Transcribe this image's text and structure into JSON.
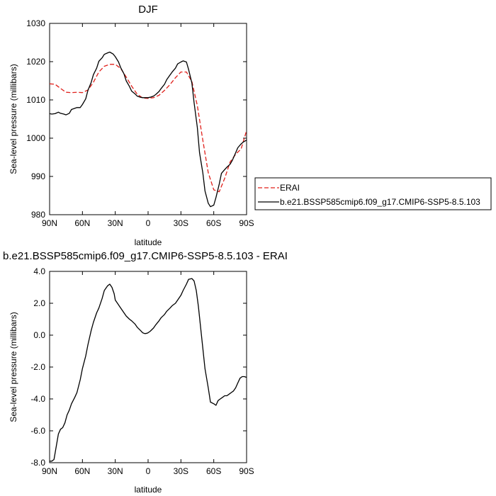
{
  "chart_data": [
    {
      "type": "line",
      "title": "DJF",
      "xlabel": "latitude",
      "ylabel": "Sea-level pressure (millibars)",
      "xlim": [
        90,
        -90
      ],
      "ylim": [
        980,
        1030
      ],
      "x_ticks": [
        90,
        60,
        30,
        0,
        -30,
        -60,
        -90
      ],
      "x_tick_labels": [
        "90N",
        "60N",
        "30N",
        "0",
        "30S",
        "60S",
        "90S"
      ],
      "y_ticks": [
        980,
        990,
        1000,
        1010,
        1020,
        1030
      ],
      "y_tick_labels": [
        "980",
        "990",
        "1000",
        "1010",
        "1020",
        "1030"
      ],
      "legend_position": "right",
      "series": [
        {
          "name": "ERAI",
          "color": "#e0201b",
          "dash": "dashed",
          "x": [
            90,
            85,
            80,
            75,
            70,
            65,
            60,
            55,
            50,
            45,
            40,
            35,
            30,
            25,
            20,
            15,
            10,
            5,
            0,
            -5,
            -10,
            -15,
            -20,
            -25,
            -30,
            -35,
            -40,
            -45,
            -50,
            -55,
            -60,
            -65,
            -70,
            -75,
            -80,
            -85,
            -90
          ],
          "values": [
            1014.2,
            1014.1,
            1013.0,
            1012.0,
            1011.9,
            1012.0,
            1011.9,
            1012.6,
            1014.6,
            1017.3,
            1018.8,
            1019.3,
            1019.3,
            1018.2,
            1016.0,
            1013.6,
            1011.5,
            1010.5,
            1010.4,
            1010.6,
            1011.2,
            1012.5,
            1014.0,
            1015.8,
            1017.3,
            1017.3,
            1014.8,
            1008.5,
            999.5,
            991.0,
            986.5,
            986.0,
            989.5,
            993.8,
            995.8,
            997.2,
            1002.0
          ]
        },
        {
          "name": "b.e21.BSSP585cmip6.f09_g17.CMIP6-SSP5-8.5.103",
          "color": "#000000",
          "dash": "solid",
          "x": [
            90,
            88,
            85,
            82,
            80,
            77,
            75,
            72,
            70,
            67,
            65,
            62,
            60,
            57,
            55,
            52,
            50,
            47,
            45,
            42,
            40,
            37,
            35,
            32,
            30,
            27,
            25,
            22,
            20,
            17,
            15,
            12,
            10,
            7,
            5,
            2,
            0,
            -2,
            -5,
            -7,
            -10,
            -12,
            -15,
            -17,
            -20,
            -22,
            -25,
            -27,
            -30,
            -32,
            -35,
            -37,
            -40,
            -42,
            -45,
            -47,
            -50,
            -52,
            -55,
            -57,
            -60,
            -62,
            -65,
            -67,
            -70,
            -72,
            -75,
            -77,
            -80,
            -82,
            -85,
            -87,
            -90
          ],
          "values": [
            1006.4,
            1006.3,
            1006.4,
            1006.8,
            1006.5,
            1006.3,
            1006.1,
            1006.5,
            1007.5,
            1007.8,
            1008.0,
            1008.0,
            1008.8,
            1010.3,
            1012.5,
            1014.6,
            1016.6,
            1018.3,
            1020.1,
            1021.0,
            1021.9,
            1022.3,
            1022.5,
            1022.0,
            1021.3,
            1019.9,
            1018.4,
            1016.8,
            1015.0,
            1013.5,
            1012.3,
            1011.6,
            1011.0,
            1010.7,
            1010.6,
            1010.6,
            1010.6,
            1010.7,
            1011.0,
            1011.4,
            1012.2,
            1013.0,
            1014.1,
            1015.3,
            1016.5,
            1017.3,
            1018.3,
            1019.4,
            1019.9,
            1020.2,
            1019.9,
            1018.0,
            1014.4,
            1009.3,
            1002.8,
            996.2,
            991.0,
            986.2,
            983.0,
            982.1,
            982.5,
            984.5,
            988.0,
            990.8,
            991.8,
            992.4,
            993.2,
            994.2,
            996.2,
            997.5,
            998.5,
            999.0,
            999.5
          ]
        }
      ]
    },
    {
      "type": "line",
      "title": "b.e21.BSSP585cmip6.f09_g17.CMIP6-SSP5-8.5.103 - ERAI",
      "xlabel": "latitude",
      "ylabel": "Sea-level pressure (millibars)",
      "xlim": [
        90,
        -90
      ],
      "ylim": [
        -8,
        4
      ],
      "x_ticks": [
        90,
        60,
        30,
        0,
        -30,
        -60,
        -90
      ],
      "x_tick_labels": [
        "90N",
        "60N",
        "30N",
        "0",
        "30S",
        "60S",
        "90S"
      ],
      "y_ticks": [
        -8,
        -6,
        -4,
        -2,
        0,
        2,
        4
      ],
      "y_tick_labels": [
        "-8.0",
        "-6.0",
        "-4.0",
        "-2.0",
        "0.0",
        "2.0",
        "4.0"
      ],
      "series": [
        {
          "color": "#000000",
          "dash": "solid",
          "x": [
            90,
            88,
            86,
            84,
            82,
            80,
            78,
            76,
            74,
            72,
            70,
            67,
            65,
            62,
            60,
            57,
            55,
            52,
            50,
            47,
            45,
            42,
            40,
            37,
            35,
            33,
            31,
            30,
            28,
            26,
            24,
            22,
            20,
            17,
            15,
            12,
            10,
            7,
            5,
            3,
            1,
            0,
            -2,
            -5,
            -7,
            -10,
            -12,
            -15,
            -17,
            -20,
            -22,
            -25,
            -27,
            -30,
            -32,
            -35,
            -37,
            -40,
            -42,
            -44,
            -46,
            -48,
            -50,
            -52,
            -55,
            -57,
            -60,
            -62,
            -64,
            -66,
            -68,
            -70,
            -72,
            -74,
            -76,
            -78,
            -80,
            -82,
            -84,
            -86,
            -88,
            -90
          ],
          "values": [
            -7.9,
            -7.9,
            -7.8,
            -7.0,
            -6.2,
            -5.9,
            -5.8,
            -5.5,
            -5.0,
            -4.7,
            -4.3,
            -3.9,
            -3.6,
            -2.8,
            -2.1,
            -1.3,
            -0.6,
            0.3,
            0.8,
            1.4,
            1.7,
            2.3,
            2.8,
            3.1,
            3.2,
            3.0,
            2.6,
            2.2,
            2.0,
            1.8,
            1.6,
            1.4,
            1.2,
            1.0,
            0.9,
            0.7,
            0.5,
            0.3,
            0.15,
            0.1,
            0.12,
            0.15,
            0.25,
            0.45,
            0.65,
            0.9,
            1.1,
            1.3,
            1.5,
            1.7,
            1.85,
            2.0,
            2.2,
            2.5,
            2.8,
            3.2,
            3.5,
            3.55,
            3.4,
            2.8,
            1.8,
            0.5,
            -0.8,
            -2.1,
            -3.3,
            -4.2,
            -4.3,
            -4.4,
            -4.1,
            -4.0,
            -3.9,
            -3.8,
            -3.8,
            -3.7,
            -3.6,
            -3.5,
            -3.3,
            -3.0,
            -2.7,
            -2.6,
            -2.6,
            -2.65
          ]
        }
      ]
    }
  ]
}
